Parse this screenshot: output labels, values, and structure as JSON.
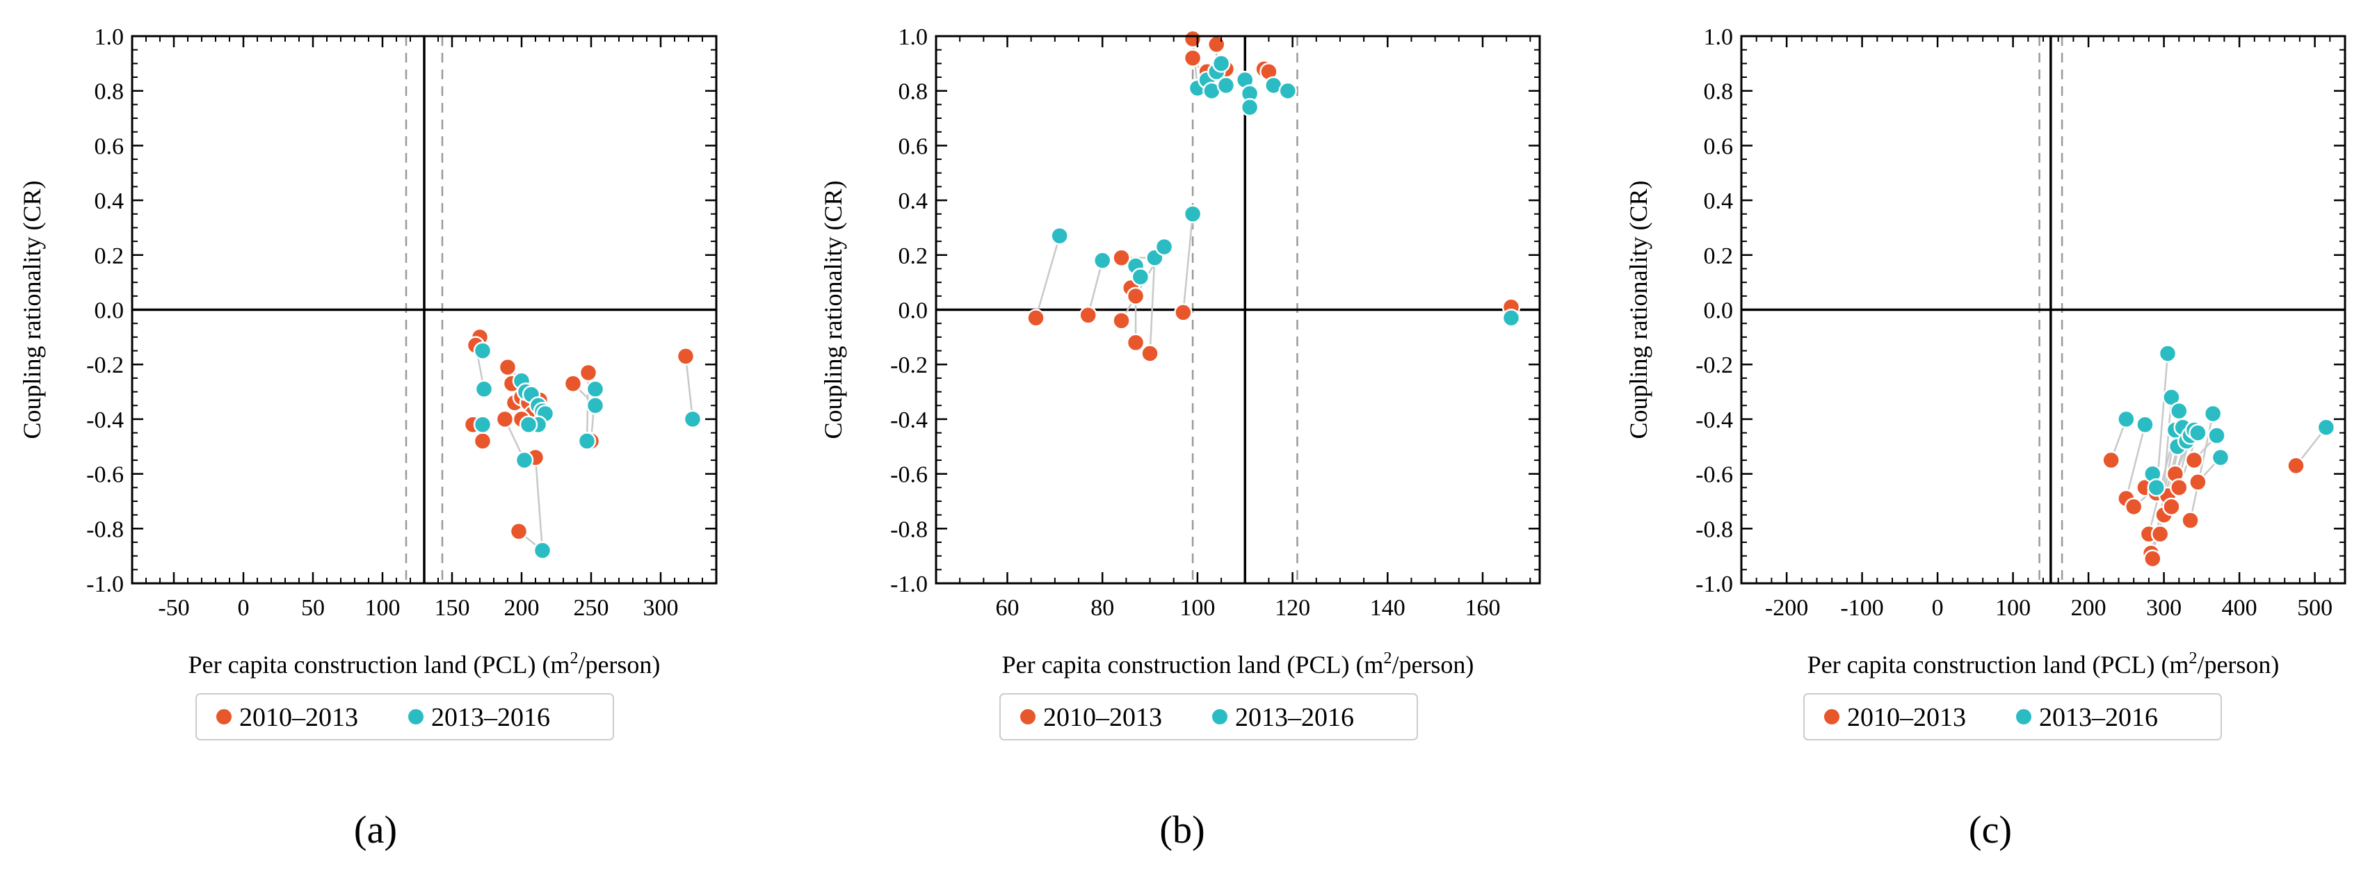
{
  "colors": {
    "period1": "#E8562C",
    "period2": "#2ABCC2",
    "link": "#C8C8C8",
    "axis": "#000000",
    "ref_dashed": "#9A9A9A"
  },
  "chart_data": [
    {
      "type": "scatter",
      "panel_label": "(a)",
      "xlabel": "Per capita construction land (PCL) (m",
      "xlabel_sup": "2",
      "xlabel_suffix": "/person)",
      "ylabel": "Coupling rationality (CR)",
      "xlim": [
        -80,
        340
      ],
      "ylim": [
        -1.0,
        1.0
      ],
      "xticks": [
        -50,
        0,
        50,
        100,
        150,
        200,
        250,
        300
      ],
      "xtick_labels": [
        "-50",
        "0",
        "50",
        "100",
        "150",
        "200",
        "250",
        "300"
      ],
      "yticks": [
        -1.0,
        -0.8,
        -0.6,
        -0.4,
        -0.2,
        0.0,
        0.2,
        0.4,
        0.6,
        0.8,
        1.0
      ],
      "ytick_labels": [
        "-1.0",
        "-0.8",
        "-0.6",
        "-0.4",
        "-0.2",
        "0.0",
        "0.2",
        "0.4",
        "0.6",
        "0.8",
        "1.0"
      ],
      "x_minor_step": 10,
      "y_minor_step": 0.05,
      "vline_solid": 130,
      "vlines_dashed": [
        117,
        143
      ],
      "hline": 0,
      "legend": [
        "2010–2013",
        "2013–2016"
      ],
      "series": [
        {
          "name": "2010–2013",
          "x": [
            170,
            167,
            172,
            165,
            190,
            193,
            195,
            188,
            200,
            205,
            208,
            213,
            200,
            198,
            237,
            248,
            250,
            318,
            210
          ],
          "y": [
            -0.1,
            -0.13,
            -0.48,
            -0.42,
            -0.21,
            -0.27,
            -0.34,
            -0.4,
            -0.32,
            -0.34,
            -0.38,
            -0.33,
            -0.4,
            -0.81,
            -0.27,
            -0.23,
            -0.48,
            -0.17,
            -0.54
          ]
        },
        {
          "name": "2013–2016",
          "x": [
            172,
            173,
            172,
            200,
            203,
            207,
            202,
            212,
            215,
            217,
            212,
            205,
            247,
            253,
            253,
            323,
            215
          ],
          "y": [
            -0.15,
            -0.29,
            -0.42,
            -0.26,
            -0.3,
            -0.31,
            -0.55,
            -0.35,
            -0.37,
            -0.38,
            -0.42,
            -0.42,
            -0.48,
            -0.29,
            -0.35,
            -0.4,
            -0.88
          ]
        }
      ],
      "links": [
        [
          0,
          0
        ],
        [
          1,
          1
        ],
        [
          2,
          2
        ],
        [
          4,
          3
        ],
        [
          5,
          4
        ],
        [
          6,
          5
        ],
        [
          7,
          6
        ],
        [
          8,
          7
        ],
        [
          9,
          8
        ],
        [
          11,
          9
        ],
        [
          10,
          10
        ],
        [
          12,
          11
        ],
        [
          15,
          12
        ],
        [
          16,
          13
        ],
        [
          14,
          14
        ],
        [
          17,
          15
        ],
        [
          18,
          16
        ],
        [
          3,
          2
        ],
        [
          13,
          16
        ]
      ]
    },
    {
      "type": "scatter",
      "panel_label": "(b)",
      "xlabel": "Per capita construction land (PCL) (m",
      "xlabel_sup": "2",
      "xlabel_suffix": "/person)",
      "ylabel": "Coupling rationality (CR)",
      "xlim": [
        45,
        172
      ],
      "ylim": [
        -1.0,
        1.0
      ],
      "xticks": [
        60,
        80,
        100,
        120,
        140,
        160
      ],
      "xtick_labels": [
        "60",
        "80",
        "100",
        "120",
        "140",
        "160"
      ],
      "yticks": [
        -1.0,
        -0.8,
        -0.6,
        -0.4,
        -0.2,
        0.0,
        0.2,
        0.4,
        0.6,
        0.8,
        1.0
      ],
      "ytick_labels": [
        "-1.0",
        "-0.8",
        "-0.6",
        "-0.4",
        "-0.2",
        "0.0",
        "0.2",
        "0.4",
        "0.6",
        "0.8",
        "1.0"
      ],
      "x_minor_step": 5,
      "y_minor_step": 0.05,
      "vline_solid": 110,
      "vlines_dashed": [
        99,
        121
      ],
      "hline": 0,
      "legend": [
        "2010–2013",
        "2013–2016"
      ],
      "series": [
        {
          "name": "2010–2013",
          "x": [
            66,
            77,
            84,
            84,
            86,
            87,
            87,
            90,
            97,
            99,
            99,
            102,
            104,
            106,
            114,
            115,
            166
          ],
          "y": [
            -0.03,
            -0.02,
            0.19,
            -0.04,
            0.08,
            0.05,
            -0.12,
            -0.16,
            -0.01,
            0.99,
            0.92,
            0.87,
            0.97,
            0.88,
            0.88,
            0.87,
            0.01
          ]
        },
        {
          "name": "2013–2016",
          "x": [
            71,
            80,
            87,
            88,
            91,
            93,
            99,
            100,
            102,
            103,
            104,
            105,
            106,
            110,
            111,
            111,
            116,
            119,
            166
          ],
          "y": [
            0.27,
            0.18,
            0.16,
            0.12,
            0.19,
            0.23,
            0.35,
            0.81,
            0.84,
            0.8,
            0.87,
            0.9,
            0.82,
            0.84,
            0.79,
            0.74,
            0.82,
            0.8,
            -0.03
          ]
        }
      ],
      "links": [
        [
          0,
          0
        ],
        [
          1,
          1
        ],
        [
          2,
          4
        ],
        [
          3,
          5
        ],
        [
          4,
          2
        ],
        [
          5,
          3
        ],
        [
          6,
          2
        ],
        [
          7,
          4
        ],
        [
          8,
          6
        ],
        [
          9,
          7
        ],
        [
          10,
          8
        ],
        [
          11,
          9
        ],
        [
          12,
          10
        ],
        [
          13,
          11
        ],
        [
          14,
          16
        ],
        [
          15,
          17
        ],
        [
          16,
          18
        ]
      ]
    },
    {
      "type": "scatter",
      "panel_label": "(c)",
      "xlabel": "Per capita construction land (PCL) (m",
      "xlabel_sup": "2",
      "xlabel_suffix": "/person)",
      "ylabel": "Coupling rationality (CR)",
      "xlim": [
        -260,
        540
      ],
      "ylim": [
        -1.0,
        1.0
      ],
      "xticks": [
        -200,
        -100,
        0,
        100,
        200,
        300,
        400,
        500
      ],
      "xtick_labels": [
        "-200",
        "-100",
        "0",
        "100",
        "200",
        "300",
        "400",
        "500"
      ],
      "yticks": [
        -1.0,
        -0.8,
        -0.6,
        -0.4,
        -0.2,
        0.0,
        0.2,
        0.4,
        0.6,
        0.8,
        1.0
      ],
      "ytick_labels": [
        "-1.0",
        "-0.8",
        "-0.6",
        "-0.4",
        "-0.2",
        "0.0",
        "0.2",
        "0.4",
        "0.6",
        "0.8",
        "1.0"
      ],
      "x_minor_step": 20,
      "y_minor_step": 0.05,
      "vline_solid": 150,
      "vlines_dashed": [
        135,
        165
      ],
      "hline": 0,
      "legend": [
        "2010–2013",
        "2013–2016"
      ],
      "series": [
        {
          "name": "2010–2013",
          "x": [
            230,
            250,
            260,
            275,
            280,
            283,
            285,
            290,
            295,
            300,
            305,
            310,
            315,
            320,
            335,
            340,
            345,
            475
          ],
          "y": [
            -0.55,
            -0.69,
            -0.72,
            -0.65,
            -0.82,
            -0.89,
            -0.91,
            -0.67,
            -0.82,
            -0.75,
            -0.68,
            -0.72,
            -0.6,
            -0.65,
            -0.77,
            -0.55,
            -0.63,
            -0.57
          ]
        },
        {
          "name": "2013–2016",
          "x": [
            250,
            275,
            285,
            290,
            305,
            310,
            315,
            318,
            320,
            325,
            330,
            335,
            340,
            345,
            365,
            370,
            375,
            515
          ],
          "y": [
            -0.4,
            -0.42,
            -0.6,
            -0.65,
            -0.16,
            -0.32,
            -0.44,
            -0.5,
            -0.37,
            -0.43,
            -0.48,
            -0.46,
            -0.44,
            -0.45,
            -0.38,
            -0.46,
            -0.54,
            -0.43
          ]
        }
      ],
      "links": [
        [
          0,
          0
        ],
        [
          1,
          1
        ],
        [
          2,
          3
        ],
        [
          3,
          2
        ],
        [
          4,
          6
        ],
        [
          5,
          7
        ],
        [
          6,
          8
        ],
        [
          7,
          4
        ],
        [
          8,
          5
        ],
        [
          9,
          9
        ],
        [
          10,
          10
        ],
        [
          11,
          11
        ],
        [
          12,
          12
        ],
        [
          13,
          13
        ],
        [
          14,
          14
        ],
        [
          15,
          15
        ],
        [
          16,
          16
        ],
        [
          17,
          17
        ]
      ]
    }
  ]
}
